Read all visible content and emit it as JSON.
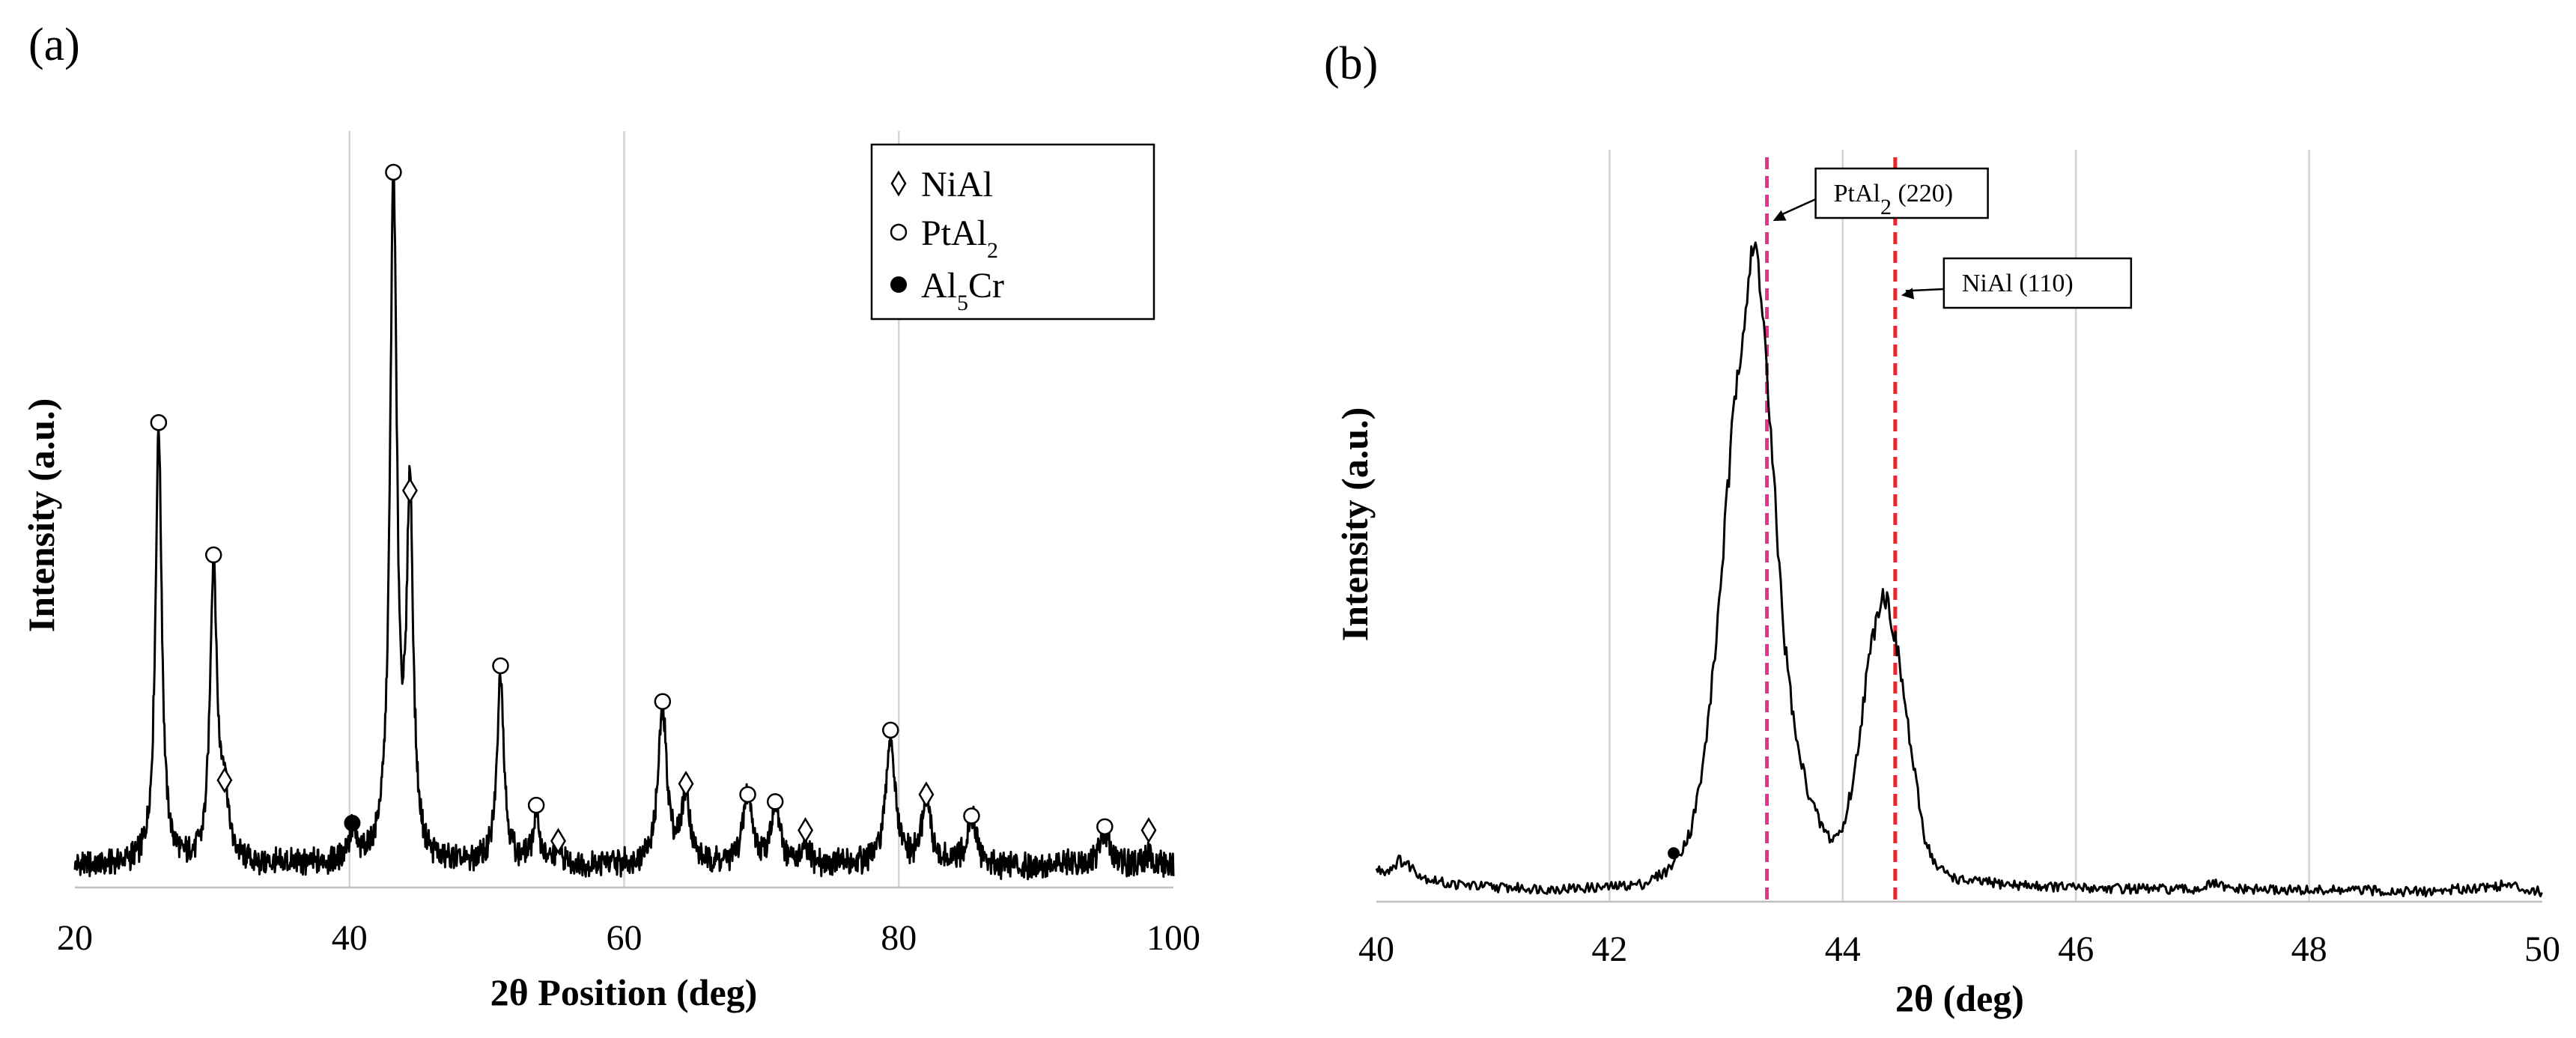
{
  "chart_data": [
    {
      "panel": "(a)",
      "type": "line",
      "xlabel": "2θ Position (deg)",
      "ylabel": "Intensity (a.u.)",
      "xlim": [
        20,
        100
      ],
      "ylim": [
        0,
        100
      ],
      "xticks": [
        20,
        40,
        60,
        80,
        100
      ],
      "grid": "vertical",
      "legend": {
        "position": "top-right",
        "entries": [
          {
            "marker": "open-diamond",
            "label": "NiAl",
            "formula": [
              {
                "t": "NiAl"
              }
            ]
          },
          {
            "marker": "open-circle",
            "label": "PtAl2",
            "formula": [
              {
                "t": "PtAl"
              },
              {
                "t": "2",
                "sub": true
              }
            ]
          },
          {
            "marker": "filled-circle",
            "label": "Al5Cr",
            "formula": [
              {
                "t": "Al"
              },
              {
                "t": "5",
                "sub": true
              },
              {
                "t": "Cr"
              }
            ]
          }
        ]
      },
      "baseline": 3,
      "peaks": [
        {
          "x": 26.1,
          "h": 61,
          "w": 0.28
        },
        {
          "x": 30.1,
          "h": 42,
          "w": 0.3
        },
        {
          "x": 30.9,
          "h": 10,
          "w": 0.3
        },
        {
          "x": 40.2,
          "h": 4,
          "w": 0.35
        },
        {
          "x": 43.2,
          "h": 95,
          "w": 0.3
        },
        {
          "x": 44.4,
          "h": 50,
          "w": 0.28
        },
        {
          "x": 51.0,
          "h": 27,
          "w": 0.3
        },
        {
          "x": 53.6,
          "h": 7,
          "w": 0.3
        },
        {
          "x": 55.2,
          "h": 2,
          "w": 0.3
        },
        {
          "x": 62.8,
          "h": 21,
          "w": 0.4
        },
        {
          "x": 64.5,
          "h": 10,
          "w": 0.35
        },
        {
          "x": 69.0,
          "h": 10,
          "w": 0.4
        },
        {
          "x": 71.0,
          "h": 8,
          "w": 0.4
        },
        {
          "x": 73.2,
          "h": 2,
          "w": 0.35
        },
        {
          "x": 79.4,
          "h": 18,
          "w": 0.4
        },
        {
          "x": 82.0,
          "h": 10,
          "w": 0.35
        },
        {
          "x": 85.3,
          "h": 7,
          "w": 0.4
        },
        {
          "x": 95.0,
          "h": 5,
          "w": 0.45
        },
        {
          "x": 98.2,
          "h": 1.5,
          "w": 0.4
        }
      ],
      "markers": [
        {
          "x": 26.1,
          "y": 65,
          "type": "open-circle",
          "phase": "PtAl2"
        },
        {
          "x": 30.1,
          "y": 46.5,
          "type": "open-circle",
          "phase": "PtAl2"
        },
        {
          "x": 30.9,
          "y": 15,
          "type": "open-diamond",
          "phase": "NiAl"
        },
        {
          "x": 40.2,
          "y": 9,
          "type": "filled-circle",
          "phase": "Al5Cr"
        },
        {
          "x": 43.2,
          "y": 100,
          "type": "open-circle",
          "phase": "PtAl2"
        },
        {
          "x": 44.4,
          "y": 55.5,
          "type": "open-diamond",
          "phase": "NiAl"
        },
        {
          "x": 51.0,
          "y": 31,
          "type": "open-circle",
          "phase": "PtAl2"
        },
        {
          "x": 53.6,
          "y": 11.5,
          "type": "open-circle",
          "phase": "PtAl2"
        },
        {
          "x": 55.2,
          "y": 6.5,
          "type": "open-diamond",
          "phase": "NiAl"
        },
        {
          "x": 62.8,
          "y": 26,
          "type": "open-circle",
          "phase": "PtAl2"
        },
        {
          "x": 64.5,
          "y": 14.5,
          "type": "open-diamond",
          "phase": "NiAl"
        },
        {
          "x": 69.0,
          "y": 13,
          "type": "open-circle",
          "phase": "PtAl2"
        },
        {
          "x": 71.0,
          "y": 12,
          "type": "open-circle",
          "phase": "PtAl2"
        },
        {
          "x": 73.2,
          "y": 8,
          "type": "open-diamond",
          "phase": "NiAl"
        },
        {
          "x": 79.4,
          "y": 22,
          "type": "open-circle",
          "phase": "PtAl2"
        },
        {
          "x": 82.0,
          "y": 13,
          "type": "open-diamond",
          "phase": "NiAl"
        },
        {
          "x": 85.3,
          "y": 10,
          "type": "open-circle",
          "phase": "PtAl2"
        },
        {
          "x": 95.0,
          "y": 8.5,
          "type": "open-circle",
          "phase": "PtAl2"
        },
        {
          "x": 98.2,
          "y": 8,
          "type": "open-diamond",
          "phase": "NiAl"
        }
      ]
    },
    {
      "panel": "(b)",
      "type": "line",
      "xlabel": "2θ (deg)",
      "ylabel": "Intensity (a.u.)",
      "xlim": [
        40,
        50
      ],
      "ylim": [
        0,
        100
      ],
      "xticks": [
        40,
        42,
        44,
        46,
        48,
        50
      ],
      "grid": "vertical",
      "curve": [
        [
          40.0,
          4
        ],
        [
          40.1,
          4
        ],
        [
          40.2,
          5.5
        ],
        [
          40.3,
          4.5
        ],
        [
          40.4,
          3
        ],
        [
          40.6,
          2
        ],
        [
          41.0,
          1.5
        ],
        [
          41.5,
          1.2
        ],
        [
          42.0,
          1.5
        ],
        [
          42.3,
          2
        ],
        [
          42.5,
          4
        ],
        [
          42.6,
          6.5
        ],
        [
          42.7,
          10
        ],
        [
          42.8,
          19
        ],
        [
          42.9,
          35
        ],
        [
          43.0,
          57
        ],
        [
          43.1,
          79
        ],
        [
          43.2,
          92
        ],
        [
          43.25,
          96
        ],
        [
          43.3,
          91
        ],
        [
          43.4,
          63
        ],
        [
          43.5,
          38
        ],
        [
          43.6,
          23
        ],
        [
          43.7,
          16
        ],
        [
          43.8,
          11
        ],
        [
          43.9,
          8.5
        ],
        [
          44.0,
          10
        ],
        [
          44.1,
          18
        ],
        [
          44.2,
          32
        ],
        [
          44.3,
          43
        ],
        [
          44.35,
          45
        ],
        [
          44.4,
          43
        ],
        [
          44.5,
          33
        ],
        [
          44.6,
          20
        ],
        [
          44.7,
          9
        ],
        [
          44.8,
          4.5
        ],
        [
          45.0,
          2.5
        ],
        [
          45.5,
          1.8
        ],
        [
          46.0,
          1.4
        ],
        [
          47.0,
          1.1
        ],
        [
          47.2,
          2
        ],
        [
          47.3,
          1.2
        ],
        [
          48.0,
          1.0
        ],
        [
          48.5,
          1.0
        ],
        [
          49.0,
          0.8
        ],
        [
          49.7,
          1.8
        ],
        [
          50.0,
          0.7
        ]
      ],
      "reference_lines": [
        {
          "x": 43.35,
          "label": "PtAl2 (220)",
          "label_parts": [
            {
              "t": "PtAl"
            },
            {
              "t": "2",
              "sub": true
            },
            {
              "t": " (220)"
            }
          ],
          "color": "#e0338a",
          "arrow_to_y": 100
        },
        {
          "x": 44.45,
          "label": "NiAl (110)",
          "label_parts": [
            {
              "t": "NiAl (110)"
            }
          ],
          "color": "#e8262b",
          "arrow_to_y": 89
        }
      ],
      "markers": [
        {
          "x": 42.55,
          "y": 6.5,
          "type": "filled-circle"
        }
      ]
    }
  ]
}
